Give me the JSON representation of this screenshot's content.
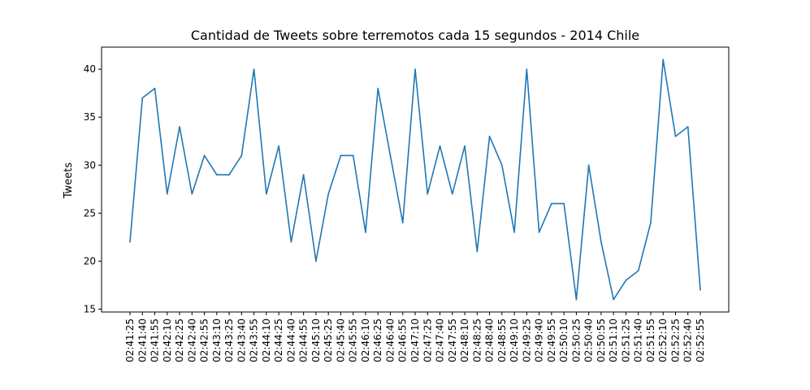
{
  "chart_data": {
    "type": "line",
    "title": "Cantidad de Tweets sobre terremotos cada 15 segundos - 2014 Chile",
    "xlabel": "",
    "ylabel": "Tweets",
    "ylim": [
      14.7,
      42.3
    ],
    "yticks": [
      15,
      20,
      25,
      30,
      35,
      40
    ],
    "grid": false,
    "legend": "none",
    "line_color": "#1f77b4",
    "categories": [
      "02:41:25",
      "02:41:40",
      "02:41:55",
      "02:42:10",
      "02:42:25",
      "02:42:40",
      "02:42:55",
      "02:43:10",
      "02:43:25",
      "02:43:40",
      "02:43:55",
      "02:44:10",
      "02:44:25",
      "02:44:40",
      "02:44:55",
      "02:45:10",
      "02:45:25",
      "02:45:40",
      "02:45:55",
      "02:46:10",
      "02:46:25",
      "02:46:40",
      "02:46:55",
      "02:47:10",
      "02:47:25",
      "02:47:40",
      "02:47:55",
      "02:48:10",
      "02:48:25",
      "02:48:40",
      "02:48:55",
      "02:49:10",
      "02:49:25",
      "02:49:40",
      "02:49:55",
      "02:50:10",
      "02:50:25",
      "02:50:40",
      "02:50:55",
      "02:51:10",
      "02:51:25",
      "02:51:40",
      "02:51:55",
      "02:52:10",
      "02:52:25",
      "02:52:40",
      "02:52:55"
    ],
    "values": [
      22,
      37,
      38,
      27,
      34,
      27,
      31,
      29,
      29,
      31,
      40,
      27,
      32,
      22,
      29,
      20,
      27,
      31,
      31,
      23,
      38,
      31,
      24,
      40,
      27,
      32,
      27,
      32,
      21,
      33,
      30,
      23,
      40,
      23,
      26,
      26,
      16,
      30,
      22,
      16,
      18,
      19,
      24,
      41,
      33,
      34,
      17
    ]
  }
}
